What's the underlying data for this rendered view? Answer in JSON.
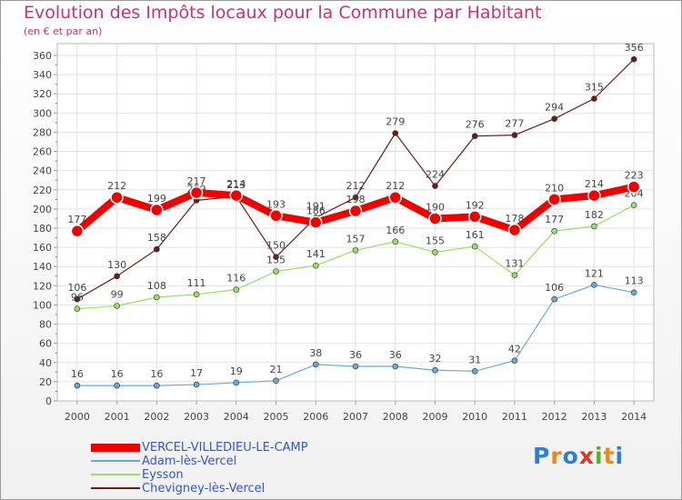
{
  "header": {
    "title": "Evolution des Impôts locaux pour la Commune par Habitant",
    "subtitle": "(en € et par an)"
  },
  "brand": {
    "text": "Proxiti",
    "letters": [
      "P",
      "r",
      "o",
      "x",
      "i",
      "t",
      "i"
    ],
    "colors": [
      "#2d7fd0",
      "#e8891b",
      "#2d7fd0",
      "#d23a2f",
      "#5aae30",
      "#e8891b",
      "#2d7fd0"
    ]
  },
  "chart_data": {
    "type": "line",
    "title": "Evolution des Impôts locaux pour la Commune par Habitant",
    "subtitle": "(en € et par an)",
    "categories": [
      "2000",
      "2001",
      "2002",
      "2003",
      "2004",
      "2005",
      "2006",
      "2007",
      "2008",
      "2009",
      "2010",
      "2011",
      "2012",
      "2013",
      "2014"
    ],
    "ylim": [
      0,
      360
    ],
    "yticks": [
      0,
      20,
      40,
      60,
      80,
      100,
      120,
      140,
      160,
      180,
      200,
      220,
      240,
      260,
      280,
      300,
      320,
      340,
      360
    ],
    "grid": true,
    "legend_position": "bottom-left",
    "series": [
      {
        "name": "Chevigney-lès-Vercel",
        "color": "#6b1a1a",
        "values": [
          106,
          130,
          158,
          209,
          213,
          150,
          191,
          212,
          279,
          224,
          276,
          277,
          294,
          315,
          356
        ],
        "width": 1.2
      },
      {
        "name": "Eysson",
        "color": "#99dd66",
        "values": [
          96,
          99,
          108,
          111,
          116,
          135,
          141,
          157,
          166,
          155,
          161,
          131,
          177,
          182,
          204
        ],
        "width": 1.2
      },
      {
        "name": "Adam-lès-Vercel",
        "color": "#6aa8d6",
        "values": [
          16,
          16,
          16,
          17,
          19,
          21,
          38,
          36,
          36,
          32,
          31,
          42,
          106,
          121,
          113
        ],
        "width": 1.2
      },
      {
        "name": "VERCEL-VILLEDIEU-LE-CAMP",
        "color": "#ee0000",
        "values": [
          177,
          212,
          199,
          217,
          214,
          193,
          186,
          198,
          212,
          190,
          192,
          178,
          210,
          214,
          223
        ],
        "width": 8
      }
    ]
  },
  "legend": {
    "items": [
      {
        "label": "VERCEL-VILLEDIEU-LE-CAMP",
        "color": "#ee0000",
        "thick": true
      },
      {
        "label": "Adam-lès-Vercel",
        "color": "#6aa8d6",
        "thick": false
      },
      {
        "label": "Eysson",
        "color": "#99dd66",
        "thick": false
      },
      {
        "label": "Chevigney-lès-Vercel",
        "color": "#6b1a1a",
        "thick": false
      }
    ]
  }
}
